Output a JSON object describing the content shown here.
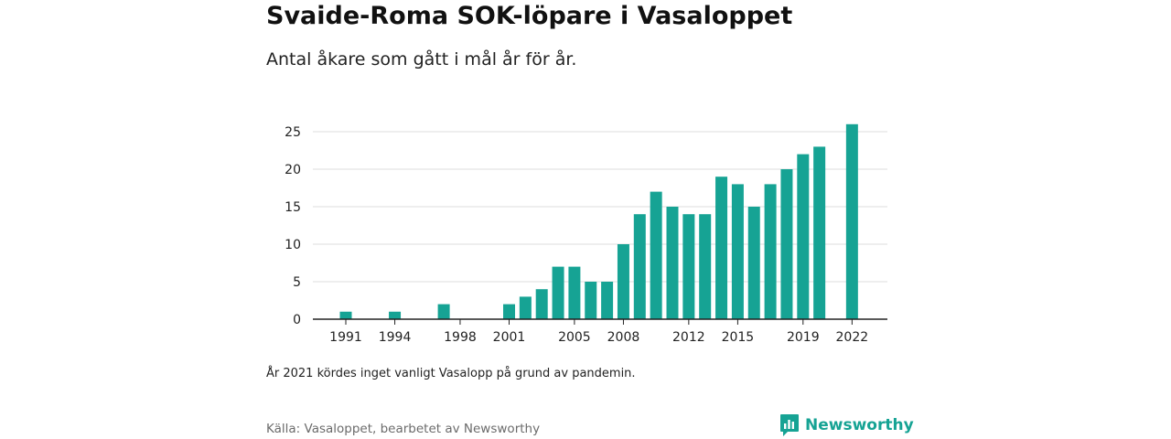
{
  "title": "Svaide-Roma SOK-löpare i Vasaloppet",
  "subtitle": "Antal åkare som gått i mål år för år.",
  "note": "År 2021 kördes inget vanligt Vasalopp på grund av pandemin.",
  "source": "Källa: Vasaloppet, bearbetet av Newsworthy",
  "logo": {
    "text": "Newsworthy",
    "icon": "newsworthy-logo-icon"
  },
  "colors": {
    "bar": "#16a394",
    "grid": "#dcdcdc",
    "axis": "#222222",
    "brand": "#16a394"
  },
  "chart_data": {
    "type": "bar",
    "title": "",
    "xlabel": "",
    "ylabel": "",
    "ylim": [
      0,
      26
    ],
    "yticks": [
      0,
      5,
      10,
      15,
      20,
      25
    ],
    "xlim": [
      1990,
      2023
    ],
    "xtick_labels": [
      "1991",
      "1994",
      "1998",
      "2001",
      "2005",
      "2008",
      "2012",
      "2015",
      "2019",
      "2022"
    ],
    "grid": true,
    "legend": "none",
    "x": [
      1991,
      1994,
      1997,
      2001,
      2002,
      2003,
      2004,
      2005,
      2006,
      2007,
      2008,
      2009,
      2010,
      2011,
      2012,
      2013,
      2014,
      2015,
      2016,
      2017,
      2018,
      2019,
      2020,
      2022
    ],
    "values": [
      1,
      1,
      2,
      2,
      3,
      4,
      7,
      7,
      5,
      5,
      10,
      14,
      17,
      15,
      14,
      14,
      19,
      18,
      15,
      18,
      20,
      22,
      23,
      26
    ]
  }
}
